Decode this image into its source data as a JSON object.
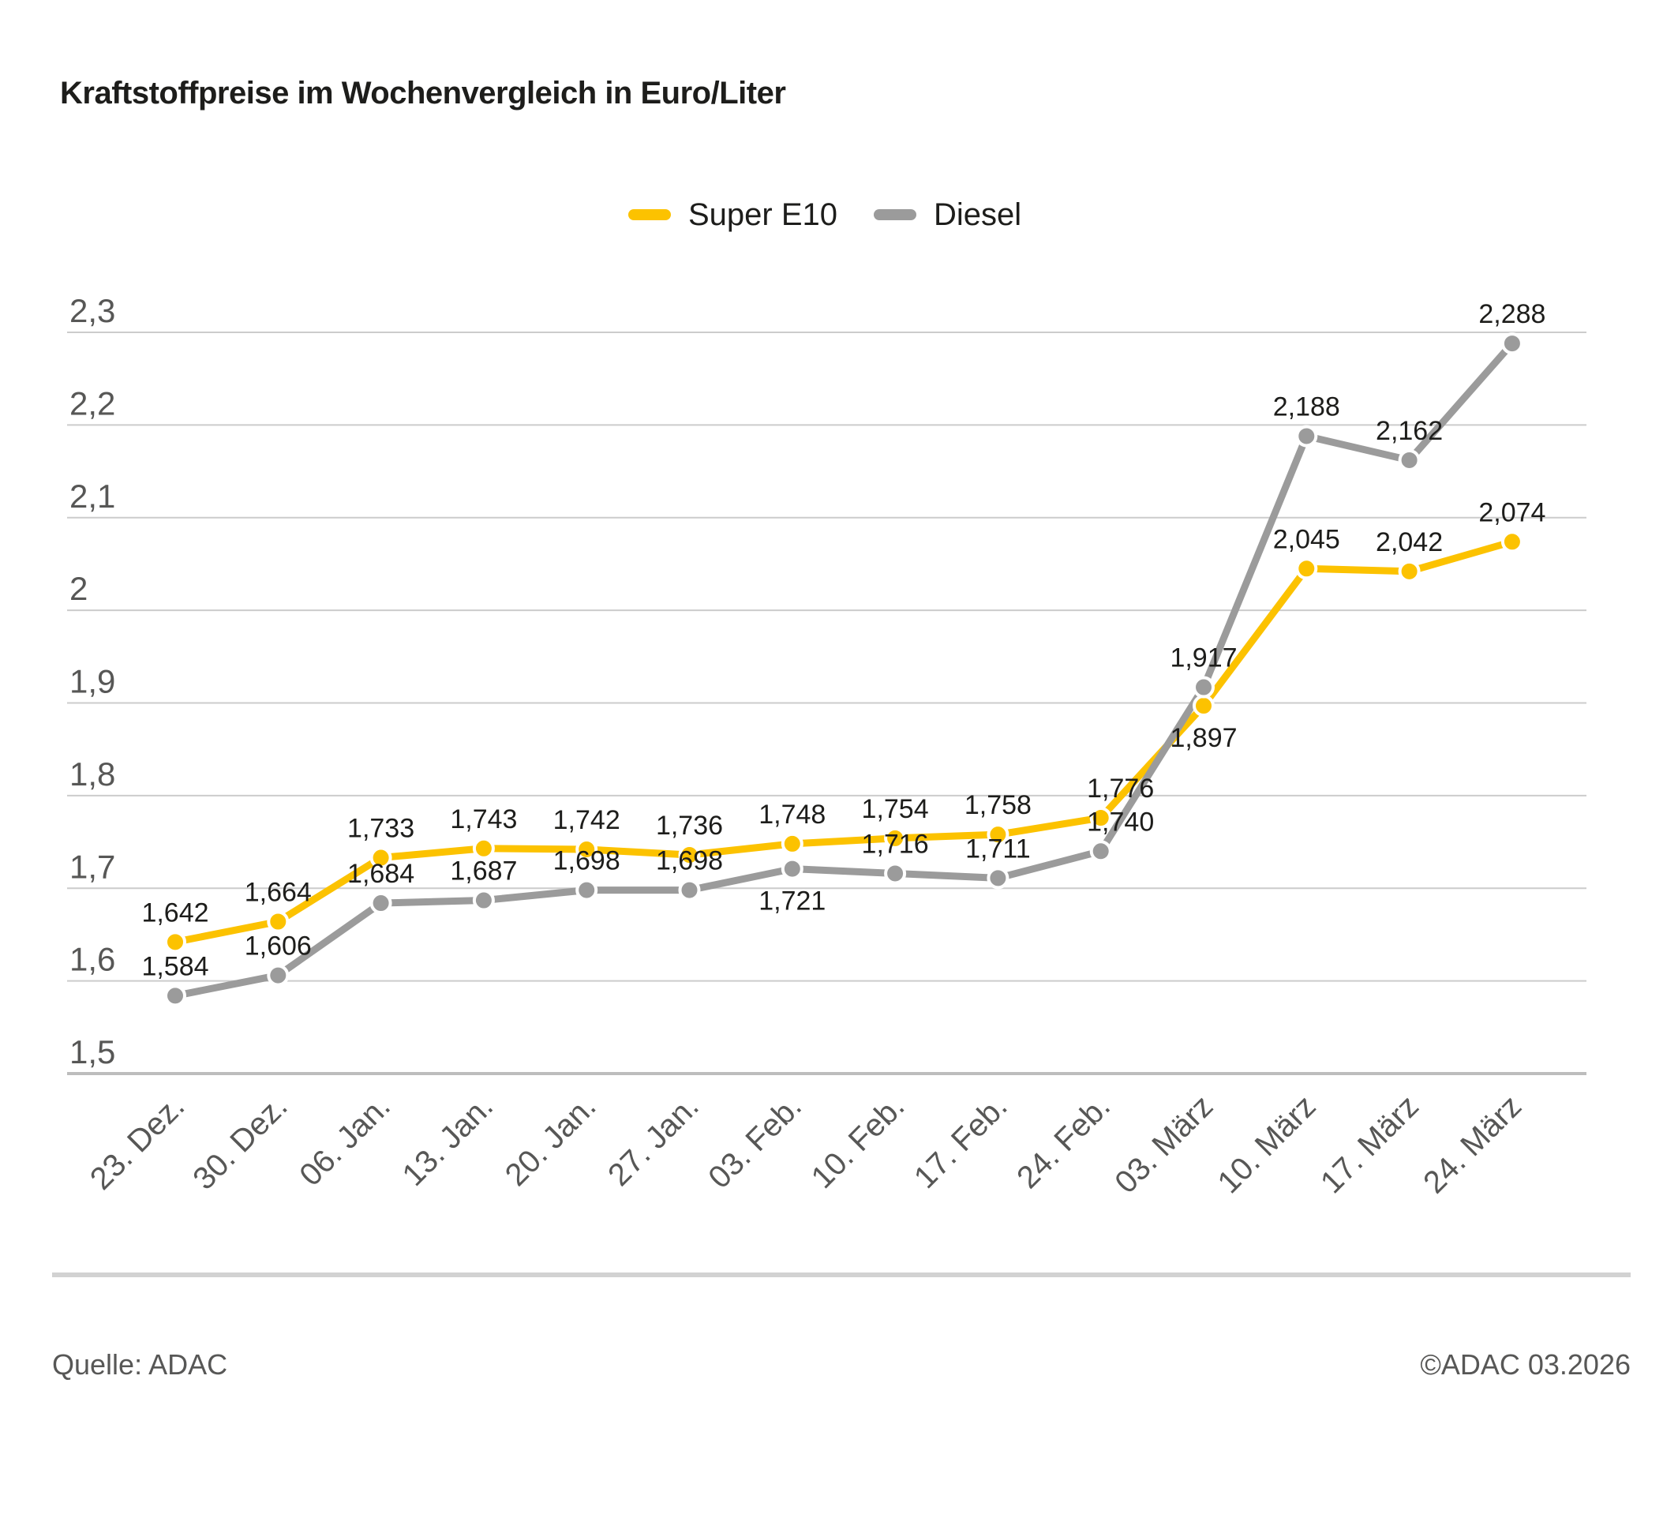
{
  "page": {
    "background": "#ffffff"
  },
  "header": {
    "title": "Kraftstoffpreise im Wochenvergleich in Euro/Liter"
  },
  "legend": [
    {
      "label": "Super E10",
      "color": "#fcc200"
    },
    {
      "label": "Diesel",
      "color": "#9b9b9b"
    }
  ],
  "footer": {
    "source": "Quelle: ADAC",
    "copyright": "©ADAC 03.2026"
  },
  "chart_data": {
    "type": "line",
    "title": "Kraftstoffpreise im Wochenvergleich in Euro/Liter",
    "xlabel": "",
    "ylabel": "Euro/Liter",
    "decimal_separator": ",",
    "grid": true,
    "legend_position": "top",
    "ylim": [
      1.5,
      2.3
    ],
    "y_ticks": {
      "values": [
        2.3,
        2.2,
        2.1,
        2.0,
        1.9,
        1.8,
        1.7,
        1.6,
        1.5
      ],
      "labels": [
        "2,3",
        "2,2",
        "2,1",
        "2",
        "1,9",
        "1,8",
        "1,7",
        "1,6",
        "1,5"
      ]
    },
    "categories": [
      "23. Dez.",
      "30. Dez.",
      "06. Jan.",
      "13. Jan.",
      "20. Jan.",
      "27. Jan.",
      "03. Feb.",
      "10. Feb.",
      "17. Feb.",
      "24. Feb.",
      "03. März",
      "10. März",
      "17. März",
      "24. März"
    ],
    "series": [
      {
        "name": "Super E10",
        "color": "#fcc200",
        "values": [
          1.642,
          1.664,
          1.733,
          1.743,
          1.742,
          1.736,
          1.748,
          1.754,
          1.758,
          1.776,
          1.897,
          2.045,
          2.042,
          2.074
        ],
        "labels": [
          "1,642",
          "1,664",
          "1,733",
          "1,743",
          "1,742",
          "1,736",
          "1,748",
          "1,754",
          "1,758",
          "1,776",
          "1,897",
          "2,045",
          "2,042",
          "2,074"
        ],
        "label_below_indices": [
          10
        ],
        "label_dx": {
          "9": 25
        }
      },
      {
        "name": "Diesel",
        "color": "#9b9b9b",
        "values": [
          1.584,
          1.606,
          1.684,
          1.687,
          1.698,
          1.698,
          1.721,
          1.716,
          1.711,
          1.74,
          1.917,
          2.188,
          2.162,
          2.288
        ],
        "labels": [
          "1,584",
          "1,606",
          "1,684",
          "1,687",
          "1,698",
          "1,698",
          "1,721",
          "1,716",
          "1,711",
          "1,740",
          "1,917",
          "2,188",
          "2,162",
          "2,288"
        ],
        "label_below_indices": [
          6
        ],
        "label_dx": {
          "9": 25
        }
      }
    ]
  }
}
